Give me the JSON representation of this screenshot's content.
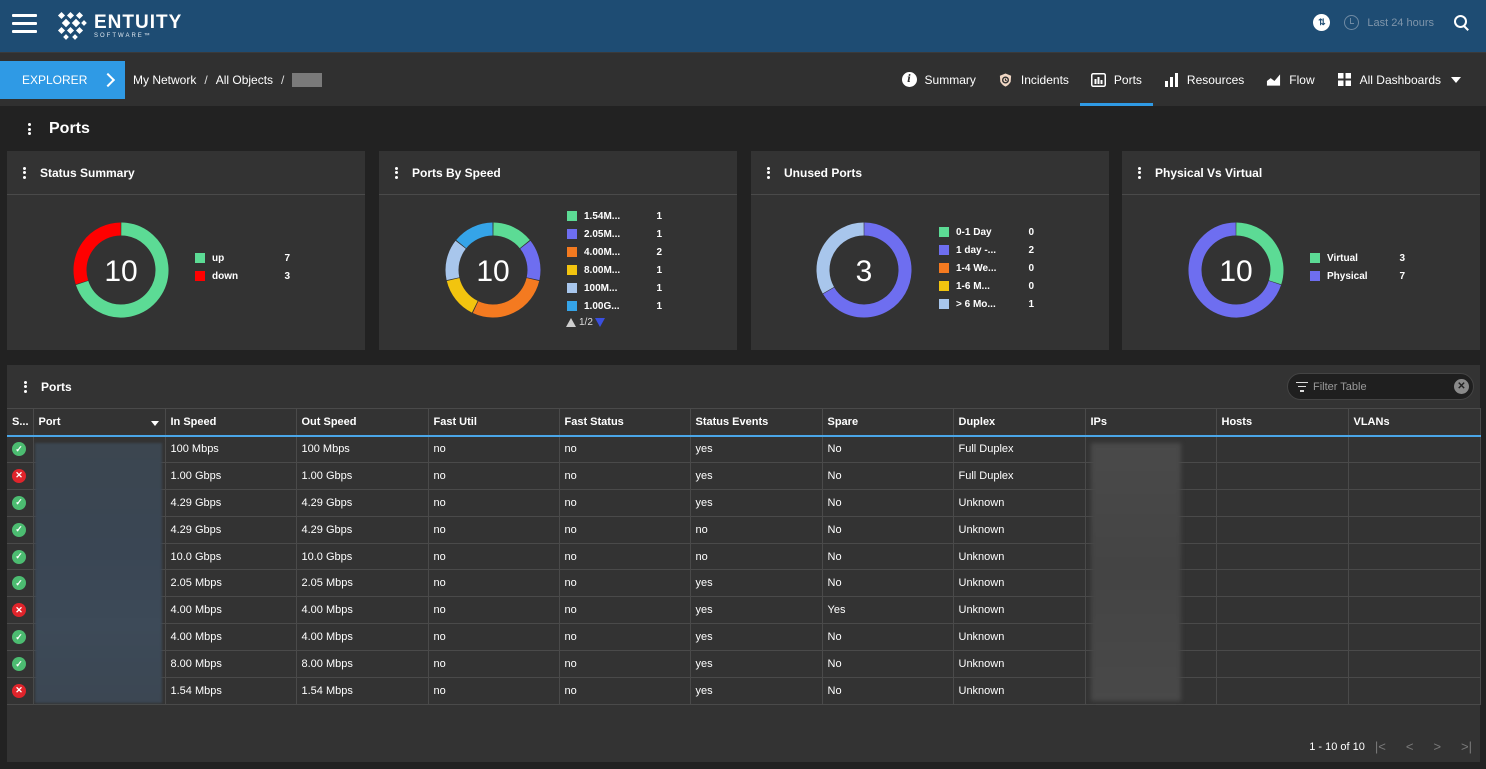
{
  "header": {
    "logo_title": "ENTUITY",
    "logo_sub": "SOFTWARE™",
    "time_range": "Last 24 hours"
  },
  "nav": {
    "explorer_label": "EXPLORER",
    "breadcrumb": [
      "My Network",
      "All Objects"
    ],
    "tabs": [
      {
        "label": "Summary",
        "icon": "info-icon"
      },
      {
        "label": "Incidents",
        "icon": "incidents-icon"
      },
      {
        "label": "Ports",
        "icon": "ports-icon",
        "active": true
      },
      {
        "label": "Resources",
        "icon": "resources-icon"
      },
      {
        "label": "Flow",
        "icon": "flow-icon"
      },
      {
        "label": "All Dashboards",
        "icon": "dashboards-icon"
      }
    ]
  },
  "page": {
    "title": "Ports"
  },
  "colors": {
    "green": "#5cdb95",
    "red": "#ff0000",
    "purple": "#6e6ef0",
    "orange": "#f47a20",
    "yellow": "#f2c40f",
    "lightblue": "#a8c6ec",
    "blue": "#35a4e8",
    "accent": "#2f9ae5"
  },
  "widgets": {
    "status_summary": {
      "title": "Status Summary",
      "center": "10",
      "legend": [
        {
          "label": "up",
          "value": "7",
          "color": "#5cdb95"
        },
        {
          "label": "down",
          "value": "3",
          "color": "#ff0000"
        }
      ]
    },
    "ports_by_speed": {
      "title": "Ports By Speed",
      "center": "10",
      "legend": [
        {
          "label": "1.54M...",
          "value": "1",
          "color": "#5cdb95"
        },
        {
          "label": "2.05M...",
          "value": "1",
          "color": "#6e6ef0"
        },
        {
          "label": "4.00M...",
          "value": "2",
          "color": "#f47a20"
        },
        {
          "label": "8.00M...",
          "value": "1",
          "color": "#f2c40f"
        },
        {
          "label": "100M...",
          "value": "1",
          "color": "#a8c6ec"
        },
        {
          "label": "1.00G...",
          "value": "1",
          "color": "#35a4e8"
        }
      ],
      "pager": "1/2"
    },
    "unused_ports": {
      "title": "Unused Ports",
      "center": "3",
      "legend": [
        {
          "label": "0-1 Day",
          "value": "0",
          "color": "#5cdb95"
        },
        {
          "label": "1 day -...",
          "value": "2",
          "color": "#6e6ef0"
        },
        {
          "label": "1-4 We...",
          "value": "0",
          "color": "#f47a20"
        },
        {
          "label": "1-6 M...",
          "value": "0",
          "color": "#f2c40f"
        },
        {
          "label": "> 6 Mo...",
          "value": "1",
          "color": "#a8c6ec"
        }
      ]
    },
    "physical_vs_virtual": {
      "title": "Physical Vs Virtual",
      "center": "10",
      "legend": [
        {
          "label": "Virtual",
          "value": "3",
          "color": "#5cdb95"
        },
        {
          "label": "Physical",
          "value": "7",
          "color": "#6e6ef0"
        }
      ]
    }
  },
  "ports_table": {
    "title": "Ports",
    "filter_placeholder": "Filter Table",
    "columns": [
      "S...",
      "Port",
      "In Speed",
      "Out Speed",
      "Fast Util",
      "Fast Status",
      "Status Events",
      "Spare",
      "Duplex",
      "IPs",
      "Hosts",
      "VLANs"
    ],
    "rows": [
      {
        "status": "up",
        "in": "100 Mbps",
        "out": "100 Mbps",
        "fast_util": "no",
        "fast_status": "no",
        "events": "yes",
        "spare": "No",
        "duplex": "Full Duplex"
      },
      {
        "status": "down",
        "in": "1.00 Gbps",
        "out": "1.00 Gbps",
        "fast_util": "no",
        "fast_status": "no",
        "events": "yes",
        "spare": "No",
        "duplex": "Full Duplex"
      },
      {
        "status": "up",
        "in": "4.29 Gbps",
        "out": "4.29 Gbps",
        "fast_util": "no",
        "fast_status": "no",
        "events": "yes",
        "spare": "No",
        "duplex": "Unknown"
      },
      {
        "status": "up",
        "in": "4.29 Gbps",
        "out": "4.29 Gbps",
        "fast_util": "no",
        "fast_status": "no",
        "events": "no",
        "spare": "No",
        "duplex": "Unknown"
      },
      {
        "status": "up",
        "in": "10.0 Gbps",
        "out": "10.0 Gbps",
        "fast_util": "no",
        "fast_status": "no",
        "events": "no",
        "spare": "No",
        "duplex": "Unknown"
      },
      {
        "status": "up",
        "in": "2.05 Mbps",
        "out": "2.05 Mbps",
        "fast_util": "no",
        "fast_status": "no",
        "events": "yes",
        "spare": "No",
        "duplex": "Unknown"
      },
      {
        "status": "down",
        "in": "4.00 Mbps",
        "out": "4.00 Mbps",
        "fast_util": "no",
        "fast_status": "no",
        "events": "yes",
        "spare": "Yes",
        "duplex": "Unknown"
      },
      {
        "status": "up",
        "in": "4.00 Mbps",
        "out": "4.00 Mbps",
        "fast_util": "no",
        "fast_status": "no",
        "events": "yes",
        "spare": "No",
        "duplex": "Unknown"
      },
      {
        "status": "up",
        "in": "8.00 Mbps",
        "out": "8.00 Mbps",
        "fast_util": "no",
        "fast_status": "no",
        "events": "yes",
        "spare": "No",
        "duplex": "Unknown"
      },
      {
        "status": "down",
        "in": "1.54 Mbps",
        "out": "1.54 Mbps",
        "fast_util": "no",
        "fast_status": "no",
        "events": "yes",
        "spare": "No",
        "duplex": "Unknown"
      }
    ],
    "pagination": "1 - 10 of 10"
  }
}
